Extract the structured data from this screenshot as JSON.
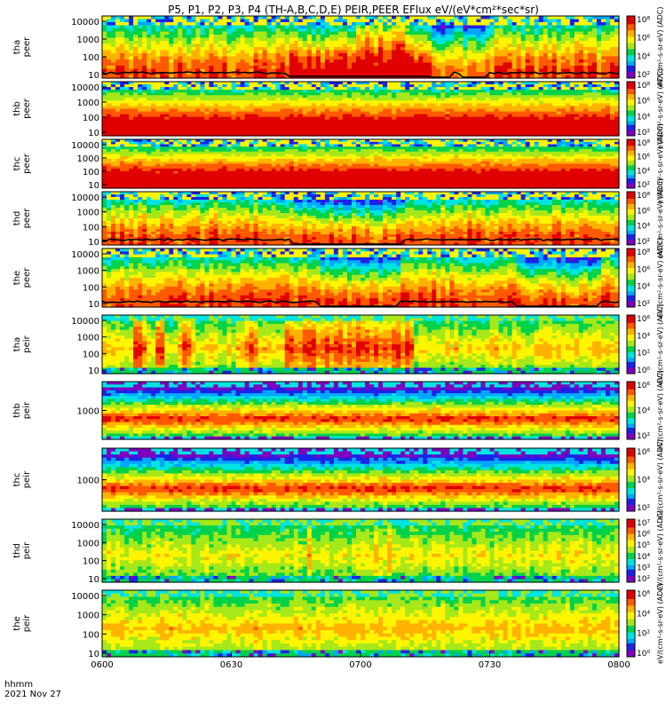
{
  "title": "P5, P1, P2, P3, P4 (TH-A,B,C,D,E) PEIR,PEER EFlux eV/(eV*cm²*sec*sr)",
  "footer": {
    "time_label": "hhmm",
    "date": "2021 Nov 27"
  },
  "colors": {
    "cmap": [
      "#7f00bf",
      "#1c22e6",
      "#00a6ff",
      "#00e4e0",
      "#00d24a",
      "#a6e81a",
      "#fff500",
      "#ffb300",
      "#ff5a00",
      "#e00000"
    ]
  },
  "chart_data": [
    {
      "type": "heatmap",
      "probe": "tha",
      "species": "peer",
      "ylabel": [
        "tha",
        "peer"
      ],
      "yscale": "log",
      "yticks": [
        "10000",
        "1000",
        "100",
        "10"
      ],
      "cbar_ticks": [
        "10⁸",
        "10⁶",
        "10⁴",
        "10²"
      ],
      "cbar_label": "eV/(cm²-s-sr-eV) (ADC)",
      "base": 0.72,
      "noise": 0.18,
      "dips": [
        [
          0.4,
          0.04
        ],
        [
          0.44,
          0.05
        ],
        [
          0.63,
          0.05
        ],
        [
          0.72,
          0.03
        ]
      ],
      "hot": [
        [
          0.36,
          0.63
        ]
      ],
      "has_line": true
    },
    {
      "type": "heatmap",
      "probe": "thb",
      "species": "peer",
      "ylabel": [
        "thb",
        "peer"
      ],
      "yscale": "log",
      "yticks": [
        "10000",
        "1000",
        "100",
        "10"
      ],
      "cbar_ticks": [
        "10⁸",
        "10⁶",
        "10⁴",
        "10²"
      ],
      "cbar_label": "eV/(cm²-s-sr-eV) (ADC)",
      "base": 0.9,
      "noise": 0.04,
      "dips": [],
      "hot": [],
      "has_line": false
    },
    {
      "type": "heatmap",
      "probe": "thc",
      "species": "peer",
      "ylabel": [
        "thc",
        "peer"
      ],
      "yscale": "log",
      "yticks": [
        "10000",
        "1000",
        "100",
        "10"
      ],
      "cbar_ticks": [
        "10⁸",
        "10⁶",
        "10⁴",
        "10²"
      ],
      "cbar_label": "eV/(cm²-s-sr-eV) (ADC)",
      "base": 0.92,
      "noise": 0.03,
      "dips": [],
      "hot": [],
      "has_line": false
    },
    {
      "type": "heatmap",
      "probe": "thd",
      "species": "peer",
      "ylabel": [
        "thd",
        "peer"
      ],
      "yscale": "log",
      "yticks": [
        "10000",
        "1000",
        "100",
        "10"
      ],
      "cbar_ticks": [
        "10⁸",
        "10⁶",
        "10⁴",
        "10²"
      ],
      "cbar_label": "eV/(cm²-s-sr-eV) (ADC)",
      "base": 0.74,
      "noise": 0.16,
      "dips": [
        [
          0.42,
          0.05
        ],
        [
          0.48,
          0.04
        ],
        [
          0.53,
          0.04
        ],
        [
          0.55,
          0.03
        ]
      ],
      "hot": [],
      "has_line": true
    },
    {
      "type": "heatmap",
      "probe": "the",
      "species": "peer",
      "ylabel": [
        "the",
        "peer"
      ],
      "yscale": "log",
      "yticks": [
        "10000",
        "1000",
        "100",
        "10"
      ],
      "cbar_ticks": [
        "10⁸",
        "10⁶",
        "10⁴",
        "10²"
      ],
      "cbar_label": "eV/(cm²-s-sr-eV) (ADC)",
      "base": 0.74,
      "noise": 0.15,
      "dips": [
        [
          0.47,
          0.05
        ],
        [
          0.53,
          0.04
        ],
        [
          0.85,
          0.05
        ],
        [
          0.93,
          0.03
        ]
      ],
      "hot": [],
      "has_line": true
    },
    {
      "type": "heatmap",
      "probe": "tha",
      "species": "peir",
      "ylabel": [
        "tha",
        "peir"
      ],
      "yscale": "log",
      "yticks": [
        "10000",
        "1000",
        "100",
        "10"
      ],
      "cbar_ticks": [
        "10⁶",
        "10⁴",
        "10²",
        "10⁰"
      ],
      "cbar_label": "eV/(cm²-s-sr-eV) (ADC)",
      "base": 0.62,
      "noise": 0.14,
      "dips": [],
      "hot": [
        [
          0.35,
          0.6
        ],
        [
          0.06,
          0.08
        ],
        [
          0.1,
          0.12
        ],
        [
          0.15,
          0.17
        ],
        [
          0.27,
          0.3
        ]
      ],
      "has_line": false
    },
    {
      "type": "heatmap",
      "probe": "thb",
      "species": "peir",
      "ylabel": [
        "thb",
        "peir"
      ],
      "yscale": "log",
      "yticks": [
        "1000"
      ],
      "cbar_ticks": [
        "10⁶",
        "10⁴",
        "10²"
      ],
      "cbar_label": "eV/(cm²-s-sr-eV) (ADC)",
      "base": 0.5,
      "noise": 0.05,
      "dips": [],
      "hot": [],
      "has_line": false,
      "banded": true
    },
    {
      "type": "heatmap",
      "probe": "thc",
      "species": "peir",
      "ylabel": [
        "thc",
        "peir"
      ],
      "yscale": "log",
      "yticks": [
        "1000"
      ],
      "cbar_ticks": [
        "10⁶",
        "10⁴",
        "10²"
      ],
      "cbar_label": "eV/(cm²-s-sr-eV) (ADC)",
      "base": 0.5,
      "noise": 0.05,
      "dips": [],
      "hot": [],
      "has_line": false,
      "banded": true
    },
    {
      "type": "heatmap",
      "probe": "thd",
      "species": "peir",
      "ylabel": [
        "thd",
        "peir"
      ],
      "yscale": "log",
      "yticks": [
        "10000",
        "1000",
        "100",
        "10"
      ],
      "cbar_ticks": [
        "10⁷",
        "10⁶",
        "10⁵",
        "10⁴",
        "10³",
        "10²"
      ],
      "cbar_label": "eV/(cm²-s-sr-eV) (ADC)",
      "base": 0.56,
      "noise": 0.1,
      "dips": [],
      "hot": [
        [
          0.39,
          0.4
        ],
        [
          0.52,
          0.53
        ],
        [
          0.55,
          0.56
        ]
      ],
      "has_line": false
    },
    {
      "type": "heatmap",
      "probe": "the",
      "species": "peir",
      "ylabel": [
        "the",
        "peir"
      ],
      "yscale": "log",
      "yticks": [
        "10000",
        "1000",
        "100",
        "10"
      ],
      "cbar_ticks": [
        "10⁶",
        "10⁴",
        "10²",
        "10⁰"
      ],
      "cbar_label": "eV/(cm²-s-sr-eV) (ADC)",
      "base": 0.64,
      "noise": 0.08,
      "dips": [],
      "hot": [],
      "has_line": false
    }
  ],
  "xaxis": {
    "ticks": [
      "0600",
      "0630",
      "0700",
      "0730",
      "0800"
    ],
    "range": [
      "0600",
      "0800"
    ]
  }
}
